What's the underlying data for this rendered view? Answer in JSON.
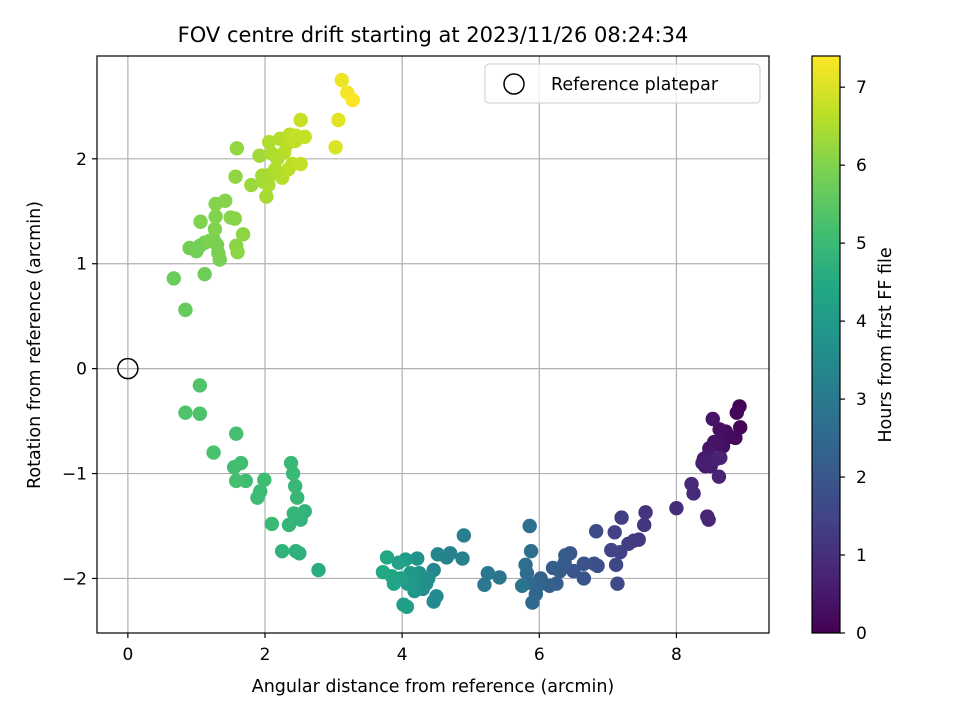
{
  "chart_data": {
    "type": "scatter",
    "title": "FOV centre drift starting at 2023/11/26 08:24:34",
    "xlabel": "Angular distance from reference (arcmin)",
    "ylabel": "Rotation from reference (arcmin)",
    "xlim": [
      -0.45,
      9.35
    ],
    "ylim": [
      -2.52,
      2.98
    ],
    "xticks": [
      0,
      2,
      4,
      6,
      8
    ],
    "yticks": [
      -2,
      -1,
      0,
      1,
      2
    ],
    "xtick_labels": [
      "0",
      "2",
      "4",
      "6",
      "8"
    ],
    "ytick_labels": [
      "−2",
      "−1",
      "0",
      "1",
      "2"
    ],
    "grid": true,
    "legend": {
      "position": "top-right",
      "entries": [
        "Reference platepar"
      ]
    },
    "reference_point": {
      "x": 0,
      "y": 0,
      "label": "Reference platepar",
      "marker": "open-circle"
    },
    "colorbar": {
      "label": "Hours from first FF file",
      "min": 0,
      "max": 7.4,
      "ticks": [
        0,
        1,
        2,
        3,
        4,
        5,
        6,
        7
      ],
      "tick_labels": [
        "0",
        "1",
        "2",
        "3",
        "4",
        "5",
        "6",
        "7"
      ],
      "colormap": "viridis"
    },
    "points": [
      {
        "x": 8.92,
        "y": -0.36,
        "h": 0.05
      },
      {
        "x": 8.93,
        "y": -0.56,
        "h": 0.1
      },
      {
        "x": 8.88,
        "y": -0.42,
        "h": 0.12
      },
      {
        "x": 8.86,
        "y": -0.66,
        "h": 0.15
      },
      {
        "x": 8.78,
        "y": -0.65,
        "h": 0.2
      },
      {
        "x": 8.72,
        "y": -0.6,
        "h": 0.22
      },
      {
        "x": 8.66,
        "y": -0.68,
        "h": 0.25
      },
      {
        "x": 8.63,
        "y": -0.58,
        "h": 0.3
      },
      {
        "x": 8.68,
        "y": -0.74,
        "h": 0.32
      },
      {
        "x": 8.6,
        "y": -0.72,
        "h": 0.35
      },
      {
        "x": 8.55,
        "y": -0.7,
        "h": 0.4
      },
      {
        "x": 8.53,
        "y": -0.48,
        "h": 0.42
      },
      {
        "x": 8.48,
        "y": -0.76,
        "h": 0.45
      },
      {
        "x": 8.47,
        "y": -0.82,
        "h": 0.5
      },
      {
        "x": 8.4,
        "y": -0.86,
        "h": 0.52
      },
      {
        "x": 8.42,
        "y": -0.93,
        "h": 0.55
      },
      {
        "x": 8.5,
        "y": -0.93,
        "h": 0.6
      },
      {
        "x": 8.38,
        "y": -0.9,
        "h": 0.62
      },
      {
        "x": 8.58,
        "y": -0.86,
        "h": 0.65
      },
      {
        "x": 8.64,
        "y": -0.85,
        "h": 0.7
      },
      {
        "x": 8.62,
        "y": -1.03,
        "h": 0.72
      },
      {
        "x": 8.45,
        "y": -1.41,
        "h": 0.78
      },
      {
        "x": 8.47,
        "y": -1.44,
        "h": 0.8
      },
      {
        "x": 8.22,
        "y": -1.1,
        "h": 0.85
      },
      {
        "x": 8.25,
        "y": -1.19,
        "h": 0.9
      },
      {
        "x": 8.0,
        "y": -1.33,
        "h": 0.95
      },
      {
        "x": 7.55,
        "y": -1.37,
        "h": 1.1
      },
      {
        "x": 7.53,
        "y": -1.49,
        "h": 1.15
      },
      {
        "x": 7.45,
        "y": -1.63,
        "h": 1.2
      },
      {
        "x": 7.38,
        "y": -1.64,
        "h": 1.25
      },
      {
        "x": 7.3,
        "y": -1.67,
        "h": 1.3
      },
      {
        "x": 7.2,
        "y": -1.42,
        "h": 1.35
      },
      {
        "x": 7.18,
        "y": -1.75,
        "h": 1.4
      },
      {
        "x": 7.1,
        "y": -1.56,
        "h": 1.45
      },
      {
        "x": 7.05,
        "y": -1.73,
        "h": 1.5
      },
      {
        "x": 7.12,
        "y": -1.87,
        "h": 1.55
      },
      {
        "x": 7.14,
        "y": -2.05,
        "h": 1.6
      },
      {
        "x": 6.83,
        "y": -1.55,
        "h": 1.7
      },
      {
        "x": 6.85,
        "y": -1.88,
        "h": 1.75
      },
      {
        "x": 6.8,
        "y": -1.86,
        "h": 1.8
      },
      {
        "x": 6.65,
        "y": -1.86,
        "h": 1.85
      },
      {
        "x": 6.65,
        "y": -2.0,
        "h": 1.9
      },
      {
        "x": 6.5,
        "y": -1.93,
        "h": 1.95
      },
      {
        "x": 6.45,
        "y": -1.76,
        "h": 2.0
      },
      {
        "x": 6.38,
        "y": -1.78,
        "h": 2.05
      },
      {
        "x": 6.37,
        "y": -1.85,
        "h": 2.1
      },
      {
        "x": 6.3,
        "y": -1.93,
        "h": 2.15
      },
      {
        "x": 6.2,
        "y": -1.9,
        "h": 2.2
      },
      {
        "x": 6.25,
        "y": -2.05,
        "h": 2.25
      },
      {
        "x": 6.15,
        "y": -2.07,
        "h": 2.3
      },
      {
        "x": 6.02,
        "y": -2.0,
        "h": 2.35
      },
      {
        "x": 5.98,
        "y": -2.07,
        "h": 2.4
      },
      {
        "x": 5.95,
        "y": -2.15,
        "h": 2.45
      },
      {
        "x": 5.9,
        "y": -2.23,
        "h": 2.5
      },
      {
        "x": 5.85,
        "y": -2.04,
        "h": 2.55
      },
      {
        "x": 5.82,
        "y": -1.95,
        "h": 2.6
      },
      {
        "x": 5.8,
        "y": -1.87,
        "h": 2.65
      },
      {
        "x": 5.88,
        "y": -1.74,
        "h": 2.7
      },
      {
        "x": 5.86,
        "y": -1.5,
        "h": 2.75
      },
      {
        "x": 5.75,
        "y": -2.07,
        "h": 2.8
      },
      {
        "x": 5.42,
        "y": -1.99,
        "h": 2.9
      },
      {
        "x": 5.25,
        "y": -1.95,
        "h": 2.95
      },
      {
        "x": 5.2,
        "y": -2.06,
        "h": 3.0
      },
      {
        "x": 4.9,
        "y": -1.59,
        "h": 3.15
      },
      {
        "x": 4.88,
        "y": -1.81,
        "h": 3.2
      },
      {
        "x": 4.7,
        "y": -1.76,
        "h": 3.25
      },
      {
        "x": 4.65,
        "y": -1.8,
        "h": 3.3
      },
      {
        "x": 4.52,
        "y": -1.77,
        "h": 3.35
      },
      {
        "x": 4.46,
        "y": -1.92,
        "h": 3.4
      },
      {
        "x": 4.5,
        "y": -2.17,
        "h": 3.45
      },
      {
        "x": 4.46,
        "y": -2.22,
        "h": 3.5
      },
      {
        "x": 4.38,
        "y": -2.0,
        "h": 3.55
      },
      {
        "x": 4.35,
        "y": -2.05,
        "h": 3.6
      },
      {
        "x": 4.3,
        "y": -2.1,
        "h": 3.65
      },
      {
        "x": 4.25,
        "y": -1.95,
        "h": 3.7
      },
      {
        "x": 4.22,
        "y": -1.81,
        "h": 3.75
      },
      {
        "x": 4.2,
        "y": -2.03,
        "h": 3.8
      },
      {
        "x": 4.18,
        "y": -2.12,
        "h": 3.85
      },
      {
        "x": 4.15,
        "y": -1.98,
        "h": 3.9
      },
      {
        "x": 4.12,
        "y": -1.95,
        "h": 3.95
      },
      {
        "x": 4.08,
        "y": -2.05,
        "h": 4.0
      },
      {
        "x": 4.05,
        "y": -1.82,
        "h": 4.05
      },
      {
        "x": 4.02,
        "y": -2.25,
        "h": 4.1
      },
      {
        "x": 4.07,
        "y": -2.27,
        "h": 4.15
      },
      {
        "x": 3.98,
        "y": -2.0,
        "h": 4.2
      },
      {
        "x": 3.95,
        "y": -1.85,
        "h": 4.25
      },
      {
        "x": 3.88,
        "y": -2.05,
        "h": 4.3
      },
      {
        "x": 3.85,
        "y": -1.98,
        "h": 4.35
      },
      {
        "x": 3.78,
        "y": -1.8,
        "h": 4.4
      },
      {
        "x": 3.72,
        "y": -1.94,
        "h": 4.45
      },
      {
        "x": 2.78,
        "y": -1.92,
        "h": 4.6
      },
      {
        "x": 2.5,
        "y": -1.76,
        "h": 4.7
      },
      {
        "x": 2.45,
        "y": -1.74,
        "h": 4.72
      },
      {
        "x": 2.25,
        "y": -1.74,
        "h": 4.75
      },
      {
        "x": 2.58,
        "y": -1.36,
        "h": 4.8
      },
      {
        "x": 2.52,
        "y": -1.44,
        "h": 4.82
      },
      {
        "x": 2.42,
        "y": -1.38,
        "h": 4.85
      },
      {
        "x": 2.35,
        "y": -1.49,
        "h": 4.87
      },
      {
        "x": 2.47,
        "y": -1.23,
        "h": 4.9
      },
      {
        "x": 2.44,
        "y": -1.12,
        "h": 4.92
      },
      {
        "x": 2.41,
        "y": -1.0,
        "h": 4.95
      },
      {
        "x": 2.38,
        "y": -0.9,
        "h": 4.97
      },
      {
        "x": 2.1,
        "y": -1.48,
        "h": 5.0
      },
      {
        "x": 1.93,
        "y": -1.17,
        "h": 5.02
      },
      {
        "x": 1.89,
        "y": -1.23,
        "h": 5.05
      },
      {
        "x": 1.99,
        "y": -1.06,
        "h": 5.07
      },
      {
        "x": 1.72,
        "y": -1.07,
        "h": 5.1
      },
      {
        "x": 1.65,
        "y": -0.9,
        "h": 5.12
      },
      {
        "x": 1.55,
        "y": -0.94,
        "h": 5.15
      },
      {
        "x": 1.58,
        "y": -1.07,
        "h": 5.17
      },
      {
        "x": 1.58,
        "y": -0.62,
        "h": 5.2
      },
      {
        "x": 1.25,
        "y": -0.8,
        "h": 5.25
      },
      {
        "x": 1.05,
        "y": -0.43,
        "h": 5.3
      },
      {
        "x": 0.84,
        "y": -0.42,
        "h": 5.33
      },
      {
        "x": 1.05,
        "y": -0.16,
        "h": 5.36
      },
      {
        "x": 0.84,
        "y": 0.56,
        "h": 5.65
      },
      {
        "x": 0.67,
        "y": 0.86,
        "h": 5.7
      },
      {
        "x": 1.12,
        "y": 0.9,
        "h": 5.75
      },
      {
        "x": 0.9,
        "y": 1.15,
        "h": 5.78
      },
      {
        "x": 1.0,
        "y": 1.12,
        "h": 5.8
      },
      {
        "x": 1.05,
        "y": 1.17,
        "h": 5.82
      },
      {
        "x": 1.12,
        "y": 1.2,
        "h": 5.84
      },
      {
        "x": 1.25,
        "y": 1.23,
        "h": 5.86
      },
      {
        "x": 1.3,
        "y": 1.18,
        "h": 5.88
      },
      {
        "x": 1.32,
        "y": 1.1,
        "h": 5.9
      },
      {
        "x": 1.34,
        "y": 1.04,
        "h": 5.92
      },
      {
        "x": 1.2,
        "y": 1.22,
        "h": 5.94
      },
      {
        "x": 1.06,
        "y": 1.4,
        "h": 5.96
      },
      {
        "x": 1.27,
        "y": 1.33,
        "h": 5.98
      },
      {
        "x": 1.28,
        "y": 1.45,
        "h": 6.0
      },
      {
        "x": 1.28,
        "y": 1.57,
        "h": 6.02
      },
      {
        "x": 1.42,
        "y": 1.6,
        "h": 6.04
      },
      {
        "x": 1.5,
        "y": 1.44,
        "h": 6.06
      },
      {
        "x": 1.56,
        "y": 1.43,
        "h": 6.08
      },
      {
        "x": 1.58,
        "y": 1.17,
        "h": 6.1
      },
      {
        "x": 1.6,
        "y": 1.11,
        "h": 6.12
      },
      {
        "x": 1.68,
        "y": 1.28,
        "h": 6.14
      },
      {
        "x": 1.57,
        "y": 1.83,
        "h": 6.16
      },
      {
        "x": 1.59,
        "y": 2.1,
        "h": 6.18
      },
      {
        "x": 1.8,
        "y": 1.75,
        "h": 6.3
      },
      {
        "x": 1.92,
        "y": 2.03,
        "h": 6.35
      },
      {
        "x": 1.96,
        "y": 1.84,
        "h": 6.38
      },
      {
        "x": 1.98,
        "y": 1.78,
        "h": 6.4
      },
      {
        "x": 2.02,
        "y": 1.64,
        "h": 6.42
      },
      {
        "x": 2.05,
        "y": 1.75,
        "h": 6.44
      },
      {
        "x": 2.08,
        "y": 1.85,
        "h": 6.46
      },
      {
        "x": 2.1,
        "y": 2.05,
        "h": 6.48
      },
      {
        "x": 2.06,
        "y": 2.16,
        "h": 6.5
      },
      {
        "x": 2.15,
        "y": 1.9,
        "h": 6.52
      },
      {
        "x": 2.18,
        "y": 2.0,
        "h": 6.54
      },
      {
        "x": 2.22,
        "y": 2.19,
        "h": 6.56
      },
      {
        "x": 2.25,
        "y": 1.82,
        "h": 6.58
      },
      {
        "x": 2.28,
        "y": 2.06,
        "h": 6.6
      },
      {
        "x": 2.32,
        "y": 2.14,
        "h": 6.62
      },
      {
        "x": 2.34,
        "y": 1.9,
        "h": 6.64
      },
      {
        "x": 2.36,
        "y": 2.23,
        "h": 6.66
      },
      {
        "x": 2.4,
        "y": 1.95,
        "h": 6.68
      },
      {
        "x": 2.44,
        "y": 2.17,
        "h": 6.7
      },
      {
        "x": 2.45,
        "y": 2.22,
        "h": 6.72
      },
      {
        "x": 2.52,
        "y": 1.95,
        "h": 6.74
      },
      {
        "x": 2.58,
        "y": 2.21,
        "h": 6.76
      },
      {
        "x": 2.52,
        "y": 2.37,
        "h": 6.78
      },
      {
        "x": 3.03,
        "y": 2.11,
        "h": 7.0
      },
      {
        "x": 3.07,
        "y": 2.37,
        "h": 7.1
      },
      {
        "x": 3.12,
        "y": 2.75,
        "h": 7.2
      },
      {
        "x": 3.2,
        "y": 2.63,
        "h": 7.3
      },
      {
        "x": 3.28,
        "y": 2.56,
        "h": 7.35
      }
    ]
  }
}
